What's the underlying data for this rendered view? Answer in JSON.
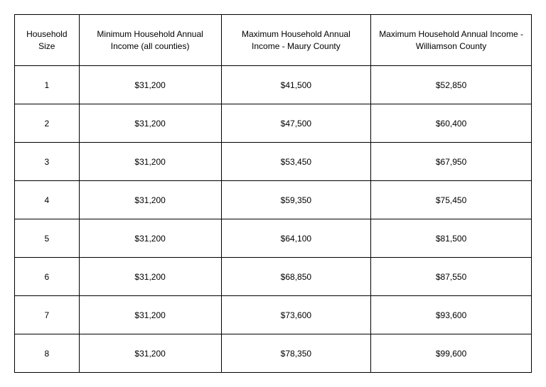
{
  "income_table": {
    "type": "table",
    "columns": [
      "Household Size",
      "Minimum Household Annual Income (all counties)",
      "Maximum Household Annual Income - Maury County",
      "Maximum Household Annual Income - Williamson County"
    ],
    "rows": [
      [
        "1",
        "$31,200",
        "$41,500",
        "$52,850"
      ],
      [
        "2",
        "$31,200",
        "$47,500",
        "$60,400"
      ],
      [
        "3",
        "$31,200",
        "$53,450",
        "$67,950"
      ],
      [
        "4",
        "$31,200",
        "$59,350",
        "$75,450"
      ],
      [
        "5",
        "$31,200",
        "$64,100",
        "$81,500"
      ],
      [
        "6",
        "$31,200",
        "$68,850",
        "$87,550"
      ],
      [
        "7",
        "$31,200",
        "$73,600",
        "$93,600"
      ],
      [
        "8",
        "$31,200",
        "$78,350",
        "$99,600"
      ]
    ],
    "border_color": "#000000",
    "background_color": "#ffffff",
    "text_color": "#000000",
    "header_fontsize": 12,
    "cell_fontsize": 12,
    "column_count": 4,
    "row_count": 8
  }
}
